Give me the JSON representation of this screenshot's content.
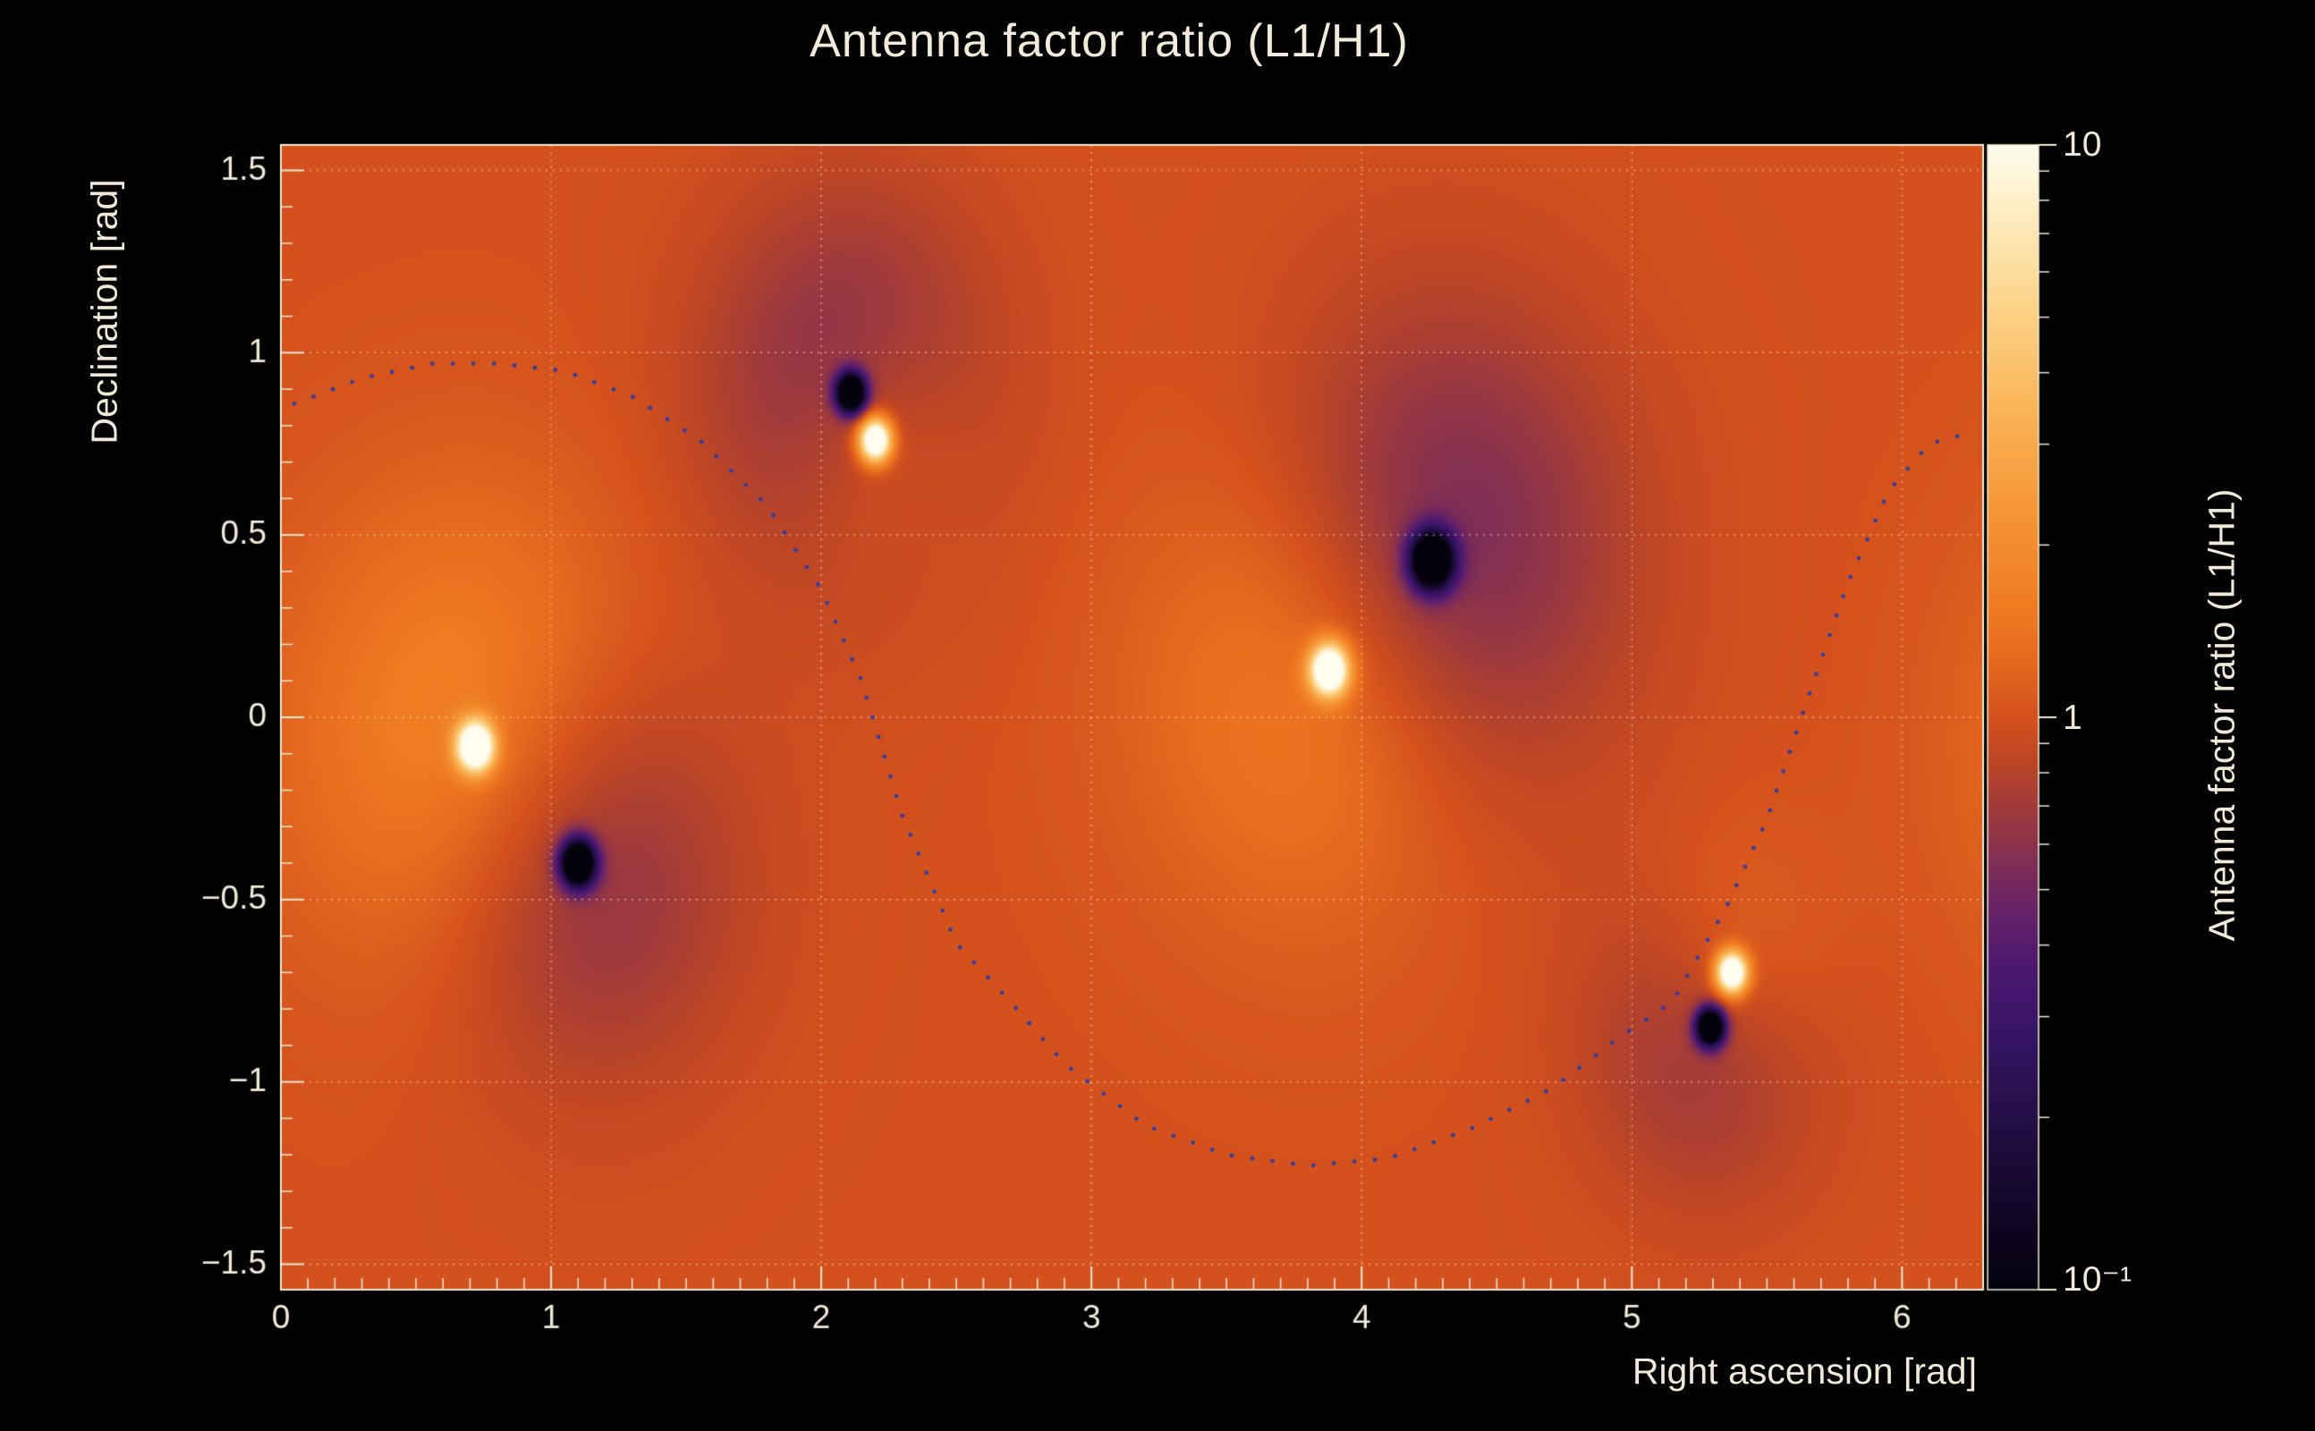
{
  "chart_data": {
    "type": "heatmap",
    "title": "Antenna factor ratio (L1/H1)",
    "xlabel": "Right ascension [rad]",
    "ylabel": "Declination [rad]",
    "zlabel": "Antenna factor ratio (L1/H1)",
    "x_range": [
      0,
      6.3
    ],
    "y_range": [
      -1.57,
      1.57
    ],
    "z_range": [
      0.1,
      10
    ],
    "z_scale": "log",
    "grid": true,
    "x_ticks": [
      0,
      1,
      2,
      3,
      4,
      5,
      6
    ],
    "x_tick_labels": [
      "0",
      "1",
      "2",
      "3",
      "4",
      "5",
      "6"
    ],
    "y_ticks": [
      -1.5,
      -1,
      -0.5,
      0,
      0.5,
      1,
      1.5
    ],
    "y_tick_labels": [
      "−1.5",
      "−1",
      "−0.5",
      "0",
      "0.5",
      "1",
      "1.5"
    ],
    "colorbar_tick_labels": [
      "10",
      "1",
      "10⁻¹"
    ],
    "colorbar_minor_ticks": [
      0.2,
      0.3,
      0.4,
      0.5,
      0.6,
      0.7,
      0.8,
      0.9,
      2,
      3,
      4,
      5,
      6,
      7,
      8,
      9
    ],
    "background_ratio": 1.0,
    "bright_peaks": [
      {
        "ra": 0.72,
        "dec": -0.08,
        "peak_ratio": 10,
        "core_amp": 1.5,
        "core_sigma": 0.048,
        "halo_amp": 0.3,
        "halo_sigma": 0.45
      },
      {
        "ra": 2.2,
        "dec": 0.76,
        "peak_ratio": 10,
        "core_amp": 1.5,
        "core_sigma": 0.042,
        "halo_amp": 0.22,
        "halo_sigma": 0.26
      },
      {
        "ra": 3.88,
        "dec": 0.13,
        "peak_ratio": 10,
        "core_amp": 1.5,
        "core_sigma": 0.05,
        "halo_amp": 0.3,
        "halo_sigma": 0.45
      },
      {
        "ra": 5.37,
        "dec": -0.7,
        "peak_ratio": 10,
        "core_amp": 1.5,
        "core_sigma": 0.04,
        "halo_amp": 0.22,
        "halo_sigma": 0.26
      }
    ],
    "dark_peaks": [
      {
        "ra": 1.1,
        "dec": -0.4,
        "peak_ratio": 0.1,
        "core_amp": 1.55,
        "core_sigma": 0.045,
        "halo_amp": 0.3,
        "halo_sigma": 0.4
      },
      {
        "ra": 2.11,
        "dec": 0.89,
        "peak_ratio": 0.1,
        "core_amp": 1.55,
        "core_sigma": 0.038,
        "halo_amp": 0.32,
        "halo_sigma": 0.36
      },
      {
        "ra": 4.26,
        "dec": 0.43,
        "peak_ratio": 0.1,
        "core_amp": 1.55,
        "core_sigma": 0.055,
        "halo_amp": 0.38,
        "halo_sigma": 0.46
      },
      {
        "ra": 5.29,
        "dec": -0.85,
        "peak_ratio": 0.1,
        "core_amp": 1.55,
        "core_sigma": 0.036,
        "halo_amp": 0.28,
        "halo_sigma": 0.3
      }
    ],
    "overlay_curve": {
      "style": "dotted",
      "color": "#353e9c",
      "points": [
        [
          0.05,
          0.86
        ],
        [
          0.3,
          0.93
        ],
        [
          0.56,
          0.97
        ],
        [
          0.8,
          0.97
        ],
        [
          1.05,
          0.95
        ],
        [
          1.3,
          0.88
        ],
        [
          1.55,
          0.76
        ],
        [
          1.8,
          0.58
        ],
        [
          2.0,
          0.35
        ],
        [
          2.15,
          0.1
        ],
        [
          2.3,
          -0.27
        ],
        [
          2.5,
          -0.62
        ],
        [
          2.7,
          -0.78
        ],
        [
          2.9,
          -0.95
        ],
        [
          3.2,
          -1.12
        ],
        [
          3.5,
          -1.2
        ],
        [
          3.8,
          -1.23
        ],
        [
          4.1,
          -1.21
        ],
        [
          4.4,
          -1.13
        ],
        [
          4.7,
          -1.02
        ],
        [
          4.95,
          -0.88
        ],
        [
          5.15,
          -0.78
        ],
        [
          5.35,
          -0.52
        ],
        [
          5.5,
          -0.28
        ],
        [
          5.65,
          0.05
        ],
        [
          5.8,
          0.37
        ],
        [
          5.95,
          0.62
        ],
        [
          6.1,
          0.75
        ],
        [
          6.25,
          0.78
        ]
      ]
    }
  },
  "colors": {
    "background": "#000000",
    "text": "#f0e9d8",
    "axis": "#efe8d5",
    "grid": "rgba(255,238,214,0.55)",
    "palette": [
      [
        0.0,
        "#05020d"
      ],
      [
        0.05,
        "#0d0520"
      ],
      [
        0.1,
        "#180a33"
      ],
      [
        0.16,
        "#271049"
      ],
      [
        0.22,
        "#351464"
      ],
      [
        0.26,
        "#43176e"
      ],
      [
        0.3,
        "#551b6d"
      ],
      [
        0.34,
        "#6b2563"
      ],
      [
        0.38,
        "#853051"
      ],
      [
        0.42,
        "#a03a3c"
      ],
      [
        0.46,
        "#bc4526"
      ],
      [
        0.5,
        "#d4511d"
      ],
      [
        0.55,
        "#e66a1e"
      ],
      [
        0.6,
        "#f07c22"
      ],
      [
        0.68,
        "#f69637"
      ],
      [
        0.76,
        "#fab153"
      ],
      [
        0.84,
        "#fccd7d"
      ],
      [
        0.92,
        "#fde7b2"
      ],
      [
        1.0,
        "#fffdf0"
      ]
    ]
  }
}
